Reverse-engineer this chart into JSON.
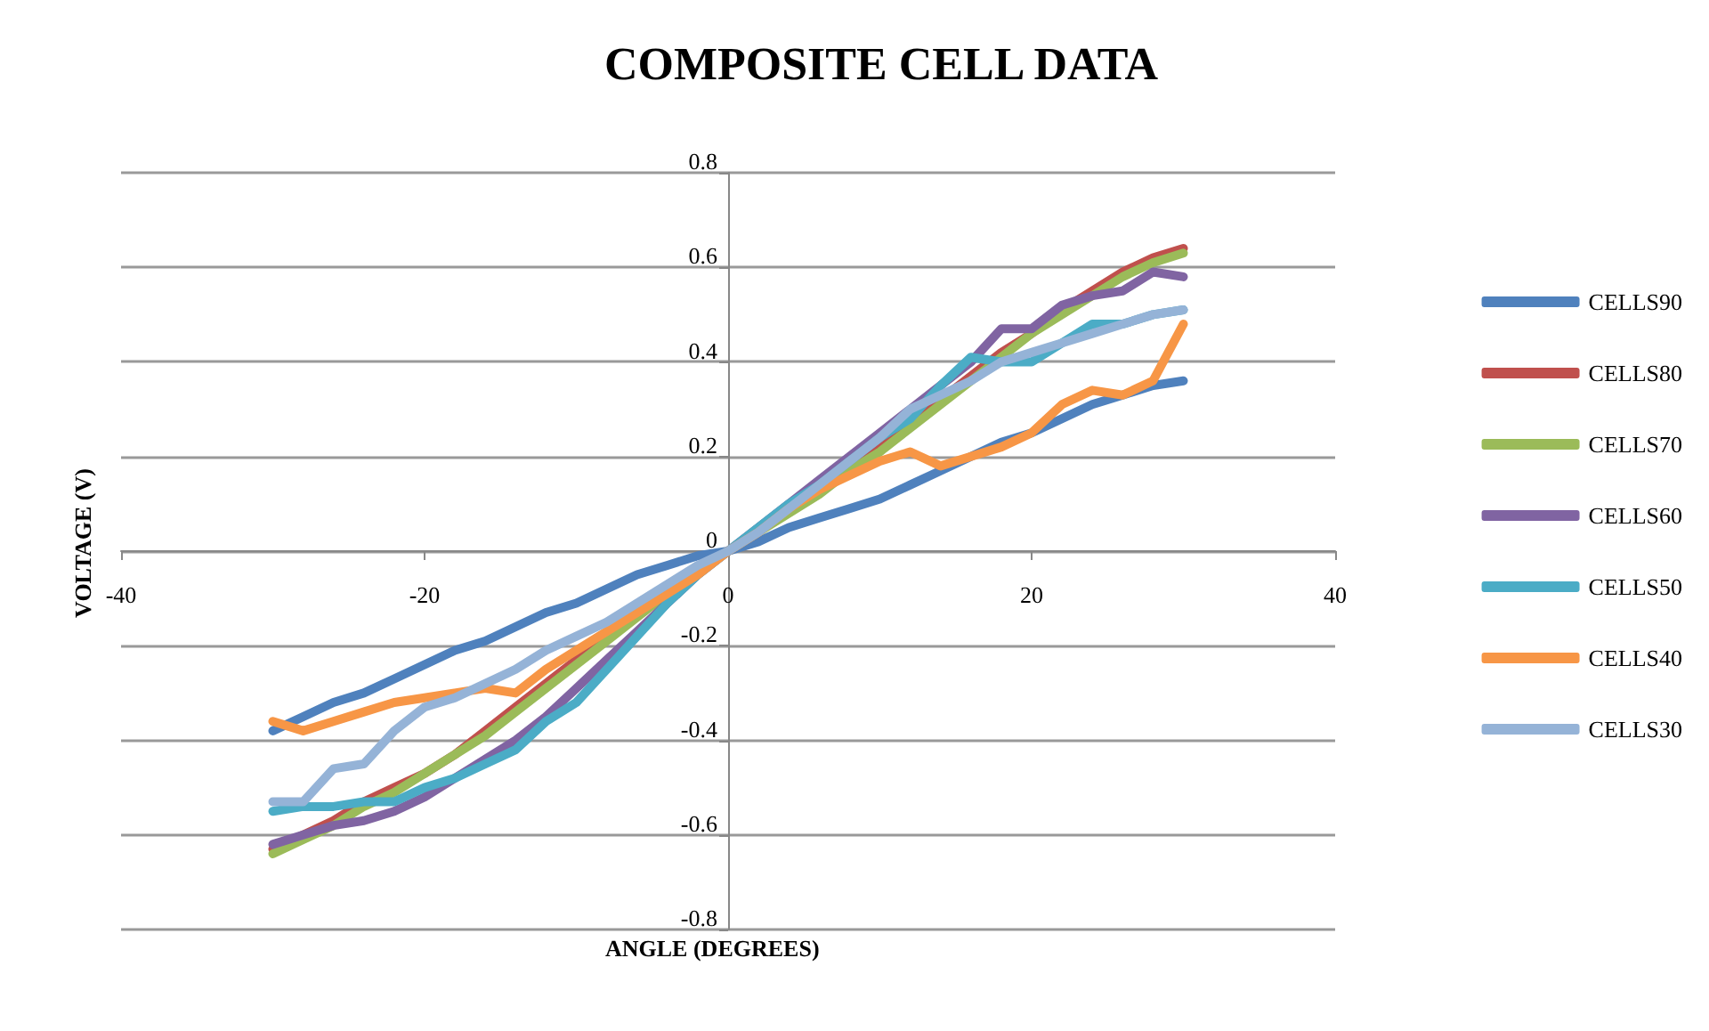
{
  "chart_data": {
    "type": "line",
    "title": "COMPOSITE CELL DATA",
    "xlabel": "ANGLE (DEGREES)",
    "ylabel": "VOLTAGE (V)",
    "x": [
      -30,
      -28,
      -26,
      -24,
      -22,
      -20,
      -18,
      -16,
      -14,
      -12,
      -10,
      -8,
      -6,
      -4,
      -2,
      0,
      2,
      4,
      6,
      8,
      10,
      12,
      14,
      16,
      18,
      20,
      22,
      24,
      26,
      28,
      30
    ],
    "xlim": [
      -40,
      40
    ],
    "xticks": [
      -40,
      -20,
      0,
      20,
      40
    ],
    "ylim": [
      -0.8,
      0.8
    ],
    "yticks": [
      -0.8,
      -0.6,
      -0.4,
      -0.2,
      0,
      0.2,
      0.4,
      0.6,
      0.8
    ],
    "grid": "y",
    "legend": "right",
    "series": [
      {
        "name": "CELLS90",
        "color": "#4f81bd",
        "values": [
          -0.38,
          -0.35,
          -0.32,
          -0.3,
          -0.27,
          -0.24,
          -0.21,
          -0.19,
          -0.16,
          -0.13,
          -0.11,
          -0.08,
          -0.05,
          -0.03,
          -0.01,
          0,
          0.02,
          0.05,
          0.07,
          0.09,
          0.11,
          0.14,
          0.17,
          0.2,
          0.23,
          0.25,
          0.28,
          0.31,
          0.33,
          0.35,
          0.36
        ]
      },
      {
        "name": "CELLS80",
        "color": "#c0504d",
        "values": [
          -0.63,
          -0.6,
          -0.57,
          -0.53,
          -0.5,
          -0.47,
          -0.43,
          -0.38,
          -0.33,
          -0.28,
          -0.23,
          -0.18,
          -0.13,
          -0.08,
          -0.04,
          0,
          0.04,
          0.09,
          0.14,
          0.19,
          0.23,
          0.28,
          0.32,
          0.37,
          0.42,
          0.46,
          0.51,
          0.55,
          0.59,
          0.62,
          0.64
        ]
      },
      {
        "name": "CELLS70",
        "color": "#9bbb59",
        "values": [
          -0.64,
          -0.61,
          -0.58,
          -0.54,
          -0.51,
          -0.47,
          -0.43,
          -0.39,
          -0.34,
          -0.29,
          -0.24,
          -0.19,
          -0.14,
          -0.09,
          -0.04,
          0,
          0.04,
          0.08,
          0.12,
          0.17,
          0.21,
          0.26,
          0.31,
          0.36,
          0.41,
          0.46,
          0.5,
          0.54,
          0.58,
          0.61,
          0.63
        ]
      },
      {
        "name": "CELLS60",
        "color": "#8064a2",
        "values": [
          -0.62,
          -0.6,
          -0.58,
          -0.57,
          -0.55,
          -0.52,
          -0.48,
          -0.44,
          -0.4,
          -0.35,
          -0.29,
          -0.23,
          -0.17,
          -0.11,
          -0.05,
          0,
          0.05,
          0.1,
          0.15,
          0.2,
          0.25,
          0.3,
          0.35,
          0.4,
          0.47,
          0.47,
          0.52,
          0.54,
          0.55,
          0.59,
          0.58
        ]
      },
      {
        "name": "CELLS50",
        "color": "#4bacc6",
        "values": [
          -0.55,
          -0.54,
          -0.54,
          -0.53,
          -0.53,
          -0.5,
          -0.48,
          -0.45,
          -0.42,
          -0.36,
          -0.32,
          -0.25,
          -0.18,
          -0.11,
          -0.05,
          0,
          0.05,
          0.1,
          0.14,
          0.19,
          0.24,
          0.28,
          0.35,
          0.41,
          0.4,
          0.4,
          0.44,
          0.48,
          0.48,
          0.5,
          0.51
        ]
      },
      {
        "name": "CELLS40",
        "color": "#f79646",
        "values": [
          -0.36,
          -0.38,
          -0.36,
          -0.34,
          -0.32,
          -0.31,
          -0.3,
          -0.29,
          -0.3,
          -0.25,
          -0.21,
          -0.17,
          -0.13,
          -0.09,
          -0.05,
          0,
          0.04,
          0.09,
          0.13,
          0.16,
          0.19,
          0.21,
          0.18,
          0.2,
          0.22,
          0.25,
          0.31,
          0.34,
          0.33,
          0.36,
          0.48
        ]
      },
      {
        "name": "CELLS30",
        "color": "#95b3d7",
        "values": [
          -0.53,
          -0.53,
          -0.46,
          -0.45,
          -0.38,
          -0.33,
          -0.31,
          -0.28,
          -0.25,
          -0.21,
          -0.18,
          -0.15,
          -0.11,
          -0.07,
          -0.03,
          0,
          0.04,
          0.09,
          0.14,
          0.19,
          0.24,
          0.3,
          0.33,
          0.36,
          0.4,
          0.42,
          0.44,
          0.46,
          0.48,
          0.5,
          0.51
        ]
      }
    ]
  }
}
